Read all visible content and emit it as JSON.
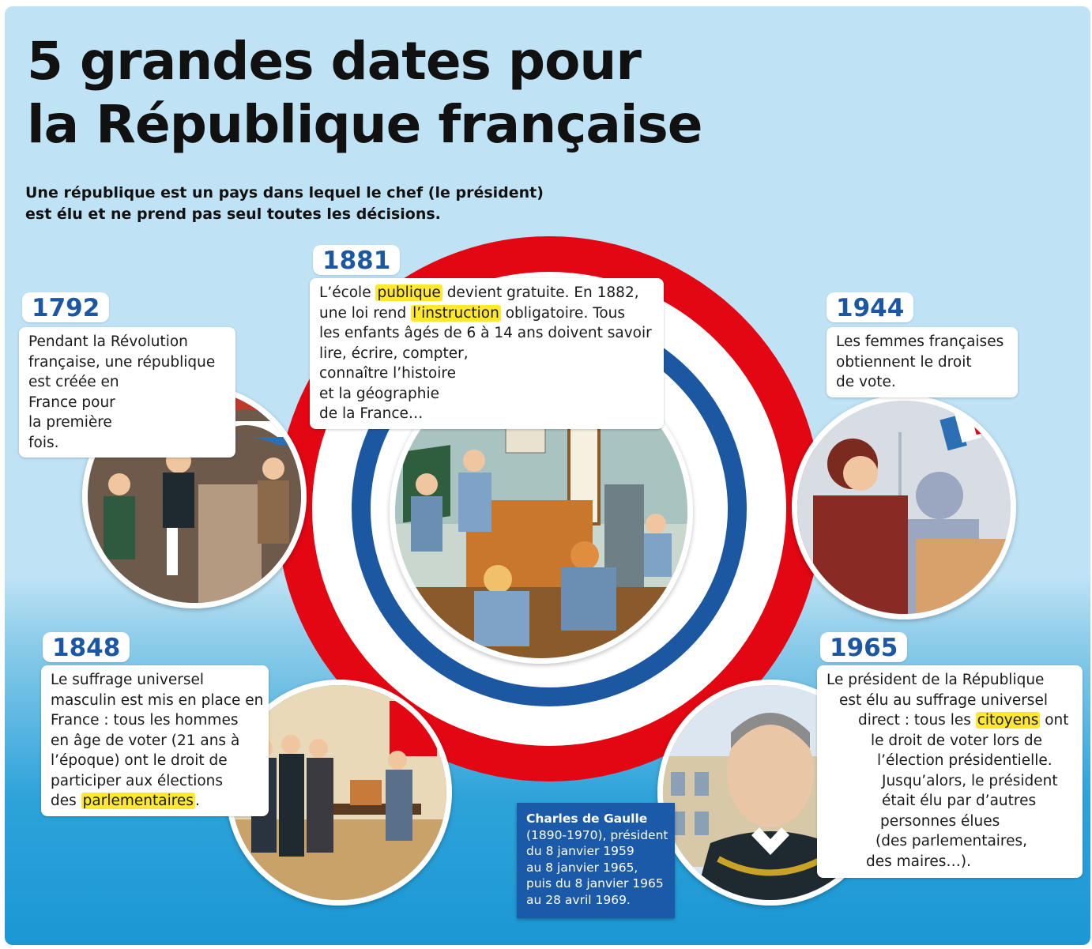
{
  "title": {
    "line1": "5 grandes dates pour",
    "line2": "la République française"
  },
  "intro": {
    "line1": "Une république est un pays dans lequel le chef (le président)",
    "line2": "est élu et ne prend pas seul toutes les décisions."
  },
  "colors": {
    "blue": "#1c57a1",
    "red": "#e30613",
    "highlight": "#ffe82e",
    "card": "#1b5aa8"
  },
  "events": {
    "e1792": {
      "year": "1792",
      "lines": [
        "Pendant la Révolution",
        "française, une république",
        "est créée en",
        "France pour",
        "la première",
        "fois."
      ],
      "illustration": "revolution-speech-illustration"
    },
    "e1881": {
      "year": "1881",
      "l1a": "L’école ",
      "l1h": "publique",
      "l1b": " devient gratuite. En 1882,",
      "l2a": "une loi rend ",
      "l2h": "l’instruction",
      "l2b": " obligatoire. Tous",
      "l3": "les enfants âgés de 6 à 14 ans doivent savoir",
      "l4": "lire, écrire, compter,",
      "l5": "connaître l’histoire",
      "l6": "et la géographie",
      "l7": "de la France…",
      "illustration": "classroom-illustration"
    },
    "e1944": {
      "year": "1944",
      "lines": [
        "Les femmes françaises",
        "obtiennent le droit",
        "de vote."
      ],
      "illustration": "woman-voting-illustration"
    },
    "e1848": {
      "year": "1848",
      "lines": [
        "Le suffrage universel",
        "masculin est mis en place en",
        "France : tous les hommes",
        "en âge de voter (21 ans à",
        "l’époque) ont le droit de",
        "participer aux élections"
      ],
      "last_a": "des ",
      "last_h": "parlementaires",
      "last_b": ".",
      "illustration": "men-voting-illustration"
    },
    "e1965": {
      "year": "1965",
      "l1": "Le président de la République",
      "l2": "est élu au suffrage universel",
      "l3a": "direct : tous les ",
      "l3h": "citoyens",
      "l3b": " ont",
      "l4": "le droit de voter lors de",
      "l5": "l’élection présidentielle.",
      "l6": "Jusqu’alors, le président",
      "l7": "était élu par d’autres",
      "l8": "personnes élues",
      "l9": "(des parlementaires,",
      "l10": "des maires…).",
      "illustration": "de-gaulle-portrait"
    }
  },
  "gaulle_card": {
    "name": "Charles de Gaulle",
    "lines": [
      "(1890-1970), président",
      "du 8 janvier 1959",
      "au 8 janvier 1965,",
      "puis du 8 janvier 1965",
      "au 28 avril 1969."
    ]
  }
}
